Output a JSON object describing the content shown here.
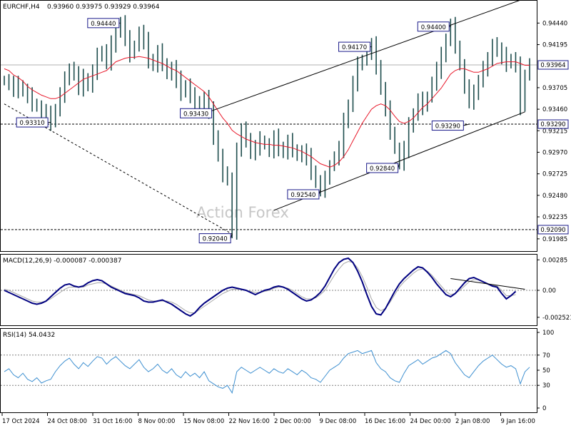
{
  "chart_data": [
    {
      "type": "candlestick",
      "panel": "price",
      "symbol_label": "EURCHF,H4",
      "ohlc_label": "0.93960 0.93975 0.93929 0.93964",
      "ylim": [
        0.9187,
        0.9467
      ],
      "y_ticks": [
        "0.94440",
        "0.94195",
        "0.93705",
        "0.93460",
        "0.93215",
        "0.92970",
        "0.92725",
        "0.92480",
        "0.92235",
        "0.91985"
      ],
      "current_price": "0.93964",
      "support_level": "0.93290",
      "low_level": "0.92090",
      "watermark": "Action Forex",
      "close_series": [
        0.9378,
        0.9374,
        0.9368,
        0.9372,
        0.9366,
        0.936,
        0.9352,
        0.9348,
        0.9342,
        0.9338,
        0.9331,
        0.9345,
        0.9362,
        0.9378,
        0.9392,
        0.9385,
        0.937,
        0.938,
        0.9372,
        0.9388,
        0.9405,
        0.9412,
        0.9398,
        0.942,
        0.9433,
        0.9444,
        0.9425,
        0.9408,
        0.9418,
        0.9432,
        0.9422,
        0.9402,
        0.9395,
        0.941,
        0.9398,
        0.9385,
        0.9392,
        0.9378,
        0.9365,
        0.9372,
        0.936,
        0.9355,
        0.9348,
        0.9358,
        0.9343,
        0.9315,
        0.9292,
        0.927,
        0.9268,
        0.9204,
        0.93,
        0.932,
        0.9312,
        0.9295,
        0.9302,
        0.931,
        0.9305,
        0.9298,
        0.9312,
        0.9302,
        0.9296,
        0.9308,
        0.93,
        0.9292,
        0.9297,
        0.929,
        0.9275,
        0.9262,
        0.9254,
        0.9265,
        0.9282,
        0.929,
        0.93,
        0.933,
        0.935,
        0.9375,
        0.9395,
        0.9402,
        0.941,
        0.9417,
        0.9395,
        0.9368,
        0.9345,
        0.932,
        0.93,
        0.9284,
        0.93,
        0.9325,
        0.934,
        0.9355,
        0.9348,
        0.936,
        0.9375,
        0.939,
        0.9405,
        0.9425,
        0.944,
        0.9418,
        0.9395,
        0.937,
        0.9355,
        0.9362,
        0.9378,
        0.9392,
        0.94,
        0.942,
        0.9412,
        0.9405,
        0.9398,
        0.9402,
        0.9395,
        0.9348,
        0.9385,
        0.9396
      ],
      "ma_series": [
        0.9392,
        0.939,
        0.9385,
        0.9382,
        0.9378,
        0.9372,
        0.9368,
        0.9365,
        0.9362,
        0.936,
        0.9358,
        0.9358,
        0.936,
        0.9364,
        0.9368,
        0.9372,
        0.9376,
        0.938,
        0.9382,
        0.9384,
        0.9386,
        0.9388,
        0.939,
        0.9395,
        0.94,
        0.9402,
        0.9404,
        0.9405,
        0.9405,
        0.9406,
        0.9405,
        0.9404,
        0.9402,
        0.94,
        0.9398,
        0.9395,
        0.9392,
        0.939,
        0.9386,
        0.9382,
        0.9378,
        0.9374,
        0.937,
        0.9366,
        0.936,
        0.9352,
        0.9344,
        0.9336,
        0.933,
        0.9322,
        0.9318,
        0.9315,
        0.9312,
        0.931,
        0.9308,
        0.9307,
        0.9306,
        0.9306,
        0.9305,
        0.9305,
        0.9304,
        0.9303,
        0.9302,
        0.93,
        0.9298,
        0.9295,
        0.9292,
        0.9288,
        0.9284,
        0.9282,
        0.928,
        0.9282,
        0.9286,
        0.9292,
        0.93,
        0.931,
        0.932,
        0.933,
        0.9338,
        0.9346,
        0.935,
        0.9352,
        0.935,
        0.9345,
        0.9338,
        0.9332,
        0.933,
        0.9332,
        0.9336,
        0.9342,
        0.9348,
        0.9352,
        0.9358,
        0.9364,
        0.937,
        0.9378,
        0.9386,
        0.939,
        0.9392,
        0.9392,
        0.939,
        0.9388,
        0.9388,
        0.939,
        0.9392,
        0.9395,
        0.9398,
        0.9399,
        0.94,
        0.94,
        0.94,
        0.9398,
        0.9396,
        0.9396
      ],
      "annotations": [
        {
          "label": "0.94440",
          "index": 25,
          "value": 0.9444,
          "side": "top"
        },
        {
          "label": "0.93310",
          "index": 10,
          "value": 0.9331,
          "side": "left"
        },
        {
          "label": "0.93430",
          "index": 44,
          "value": 0.9343,
          "side": "right"
        },
        {
          "label": "0.92040",
          "index": 49,
          "value": 0.9204,
          "side": "bottom"
        },
        {
          "label": "0.92540",
          "index": 68,
          "value": 0.9254,
          "side": "bottom"
        },
        {
          "label": "0.94170",
          "index": 79,
          "value": 0.9417,
          "side": "top"
        },
        {
          "label": "0.92840",
          "index": 85,
          "value": 0.9284,
          "side": "bottom"
        },
        {
          "label": "0.94400",
          "index": 96,
          "value": 0.944,
          "side": "top"
        },
        {
          "label": "0.93290",
          "index": 100,
          "value": 0.9329,
          "side": "right"
        }
      ],
      "trendlines": [
        {
          "style": "solid",
          "from": {
            "index": 44,
            "value": 0.9343
          },
          "to": {
            "index": 112,
            "value": 0.9472
          }
        },
        {
          "style": "solid",
          "from": {
            "index": 58,
            "value": 0.9231
          },
          "to": {
            "index": 112,
            "value": 0.9343
          }
        },
        {
          "style": "dashed",
          "from": {
            "index": 0,
            "value": 0.9352
          },
          "to": {
            "index": 49,
            "value": 0.9204
          }
        }
      ]
    },
    {
      "type": "line",
      "panel": "macd",
      "label": "MACD(12,26,9) -0.000087 -0.000387",
      "ylim": [
        -0.003,
        0.003
      ],
      "y_ticks": [
        "0.00285",
        "0.00",
        "-0.002521"
      ],
      "macd": [
        0.0,
        -0.0002,
        -0.0004,
        -0.0006,
        -0.0008,
        -0.001,
        -0.0012,
        -0.0013,
        -0.0012,
        -0.001,
        -0.0006,
        -0.0002,
        0.0002,
        0.0005,
        0.0006,
        0.0004,
        0.0003,
        0.0004,
        0.0007,
        0.0009,
        0.001,
        0.0009,
        0.0006,
        0.0003,
        0.0001,
        -0.0001,
        -0.0003,
        -0.0004,
        -0.0005,
        -0.0007,
        -0.001,
        -0.0011,
        -0.0011,
        -0.001,
        -0.0009,
        -0.0011,
        -0.0013,
        -0.0016,
        -0.0019,
        -0.0022,
        -0.0024,
        -0.0021,
        -0.0016,
        -0.0012,
        -0.0009,
        -0.0006,
        -0.0003,
        0.0,
        0.0002,
        0.0003,
        0.0002,
        0.0001,
        0.0,
        -0.0002,
        -0.0004,
        -0.0002,
        0.0,
        0.0001,
        0.0003,
        0.0004,
        0.0003,
        0.0001,
        -0.0002,
        -0.0005,
        -0.0008,
        -0.001,
        -0.0009,
        -0.0006,
        -0.0002,
        0.0004,
        0.0012,
        0.002,
        0.0026,
        0.0029,
        0.003,
        0.0026,
        0.0018,
        0.0008,
        -0.0004,
        -0.0015,
        -0.0022,
        -0.0023,
        -0.0017,
        -0.0009,
        -0.0001,
        0.0006,
        0.0011,
        0.0015,
        0.0019,
        0.0022,
        0.0021,
        0.0017,
        0.0012,
        0.0006,
        0.0001,
        -0.0004,
        -0.0006,
        -0.0003,
        0.0002,
        0.0007,
        0.0011,
        0.0012,
        0.001,
        0.0008,
        0.0006,
        0.0004,
        0.0003,
        -0.0003,
        -0.0008,
        -0.0005,
        -0.0001
      ],
      "signal": [
        0.0001,
        0.0,
        -0.0002,
        -0.0004,
        -0.0006,
        -0.0008,
        -0.001,
        -0.0011,
        -0.0011,
        -0.001,
        -0.0008,
        -0.0005,
        -0.0002,
        0.0001,
        0.0003,
        0.0003,
        0.0003,
        0.0003,
        0.0005,
        0.0006,
        0.0007,
        0.0007,
        0.0006,
        0.0004,
        0.0002,
        0.0,
        -0.0002,
        -0.0003,
        -0.0004,
        -0.0005,
        -0.0007,
        -0.0009,
        -0.001,
        -0.001,
        -0.001,
        -0.001,
        -0.0011,
        -0.0013,
        -0.0016,
        -0.0019,
        -0.0021,
        -0.0021,
        -0.0018,
        -0.0015,
        -0.0012,
        -0.0009,
        -0.0006,
        -0.0003,
        -0.0001,
        0.0001,
        0.0001,
        0.0001,
        0.0,
        -0.0001,
        -0.0002,
        -0.0002,
        -0.0001,
        0.0,
        0.0002,
        0.0003,
        0.0003,
        0.0002,
        0.0,
        -0.0003,
        -0.0006,
        -0.0008,
        -0.0008,
        -0.0007,
        -0.0004,
        0.0,
        0.0007,
        0.0014,
        0.002,
        0.0025,
        0.0027,
        0.0026,
        0.0021,
        0.0013,
        0.0003,
        -0.0008,
        -0.0016,
        -0.0019,
        -0.0017,
        -0.0011,
        -0.0004,
        0.0003,
        0.0008,
        0.0012,
        0.0016,
        0.0019,
        0.002,
        0.0018,
        0.0014,
        0.0009,
        0.0004,
        -0.0001,
        -0.0004,
        -0.0003,
        0.0,
        0.0004,
        0.0008,
        0.001,
        0.001,
        0.0008,
        0.0006,
        0.0005,
        0.0004,
        0.0,
        -0.0005,
        -0.0005,
        -0.0004
      ],
      "divergence_line": {
        "from": {
          "index": 96,
          "value": 0.0011
        },
        "to": {
          "index": 112,
          "value": 0.0001
        }
      }
    },
    {
      "type": "line",
      "panel": "rsi",
      "label": "RSI(14) 54.0432",
      "ylim": [
        0,
        100
      ],
      "y_ticks": [
        "100",
        "70",
        "50",
        "30",
        "0"
      ],
      "levels": [
        70,
        30
      ],
      "values": [
        48,
        52,
        44,
        40,
        46,
        38,
        35,
        40,
        33,
        36,
        38,
        48,
        56,
        62,
        66,
        58,
        52,
        60,
        55,
        62,
        68,
        66,
        58,
        64,
        68,
        62,
        56,
        52,
        58,
        64,
        54,
        48,
        52,
        58,
        50,
        46,
        52,
        44,
        40,
        48,
        42,
        46,
        40,
        48,
        36,
        32,
        28,
        26,
        30,
        20,
        48,
        54,
        50,
        46,
        50,
        54,
        50,
        46,
        52,
        48,
        46,
        52,
        48,
        44,
        50,
        46,
        40,
        38,
        34,
        42,
        50,
        54,
        58,
        66,
        72,
        74,
        76,
        72,
        74,
        76,
        60,
        52,
        48,
        40,
        36,
        34,
        46,
        56,
        60,
        64,
        58,
        62,
        66,
        68,
        72,
        76,
        72,
        60,
        52,
        44,
        40,
        48,
        56,
        62,
        66,
        70,
        64,
        58,
        54,
        56,
        52,
        32,
        48,
        54
      ],
      "x_labels": [
        "17 Oct 2024",
        "24 Oct 08:00",
        "31 Oct 16:00",
        "8 Nov 00:00",
        "15 Nov 08:00",
        "22 Nov 16:00",
        "2 Dec 00:00",
        "9 Dec 08:00",
        "16 Dec 16:00",
        "24 Dec 00:00",
        "2 Jan 08:00",
        "9 Jan 16:00"
      ]
    }
  ],
  "colors": {
    "candle": "#1e4d4d",
    "ma": "#e8182a",
    "macd": "#000080",
    "signal": "#a8a8a8",
    "rsi": "#3d8fd0",
    "label_border": "#1a1a8a",
    "grid": "#808080"
  }
}
